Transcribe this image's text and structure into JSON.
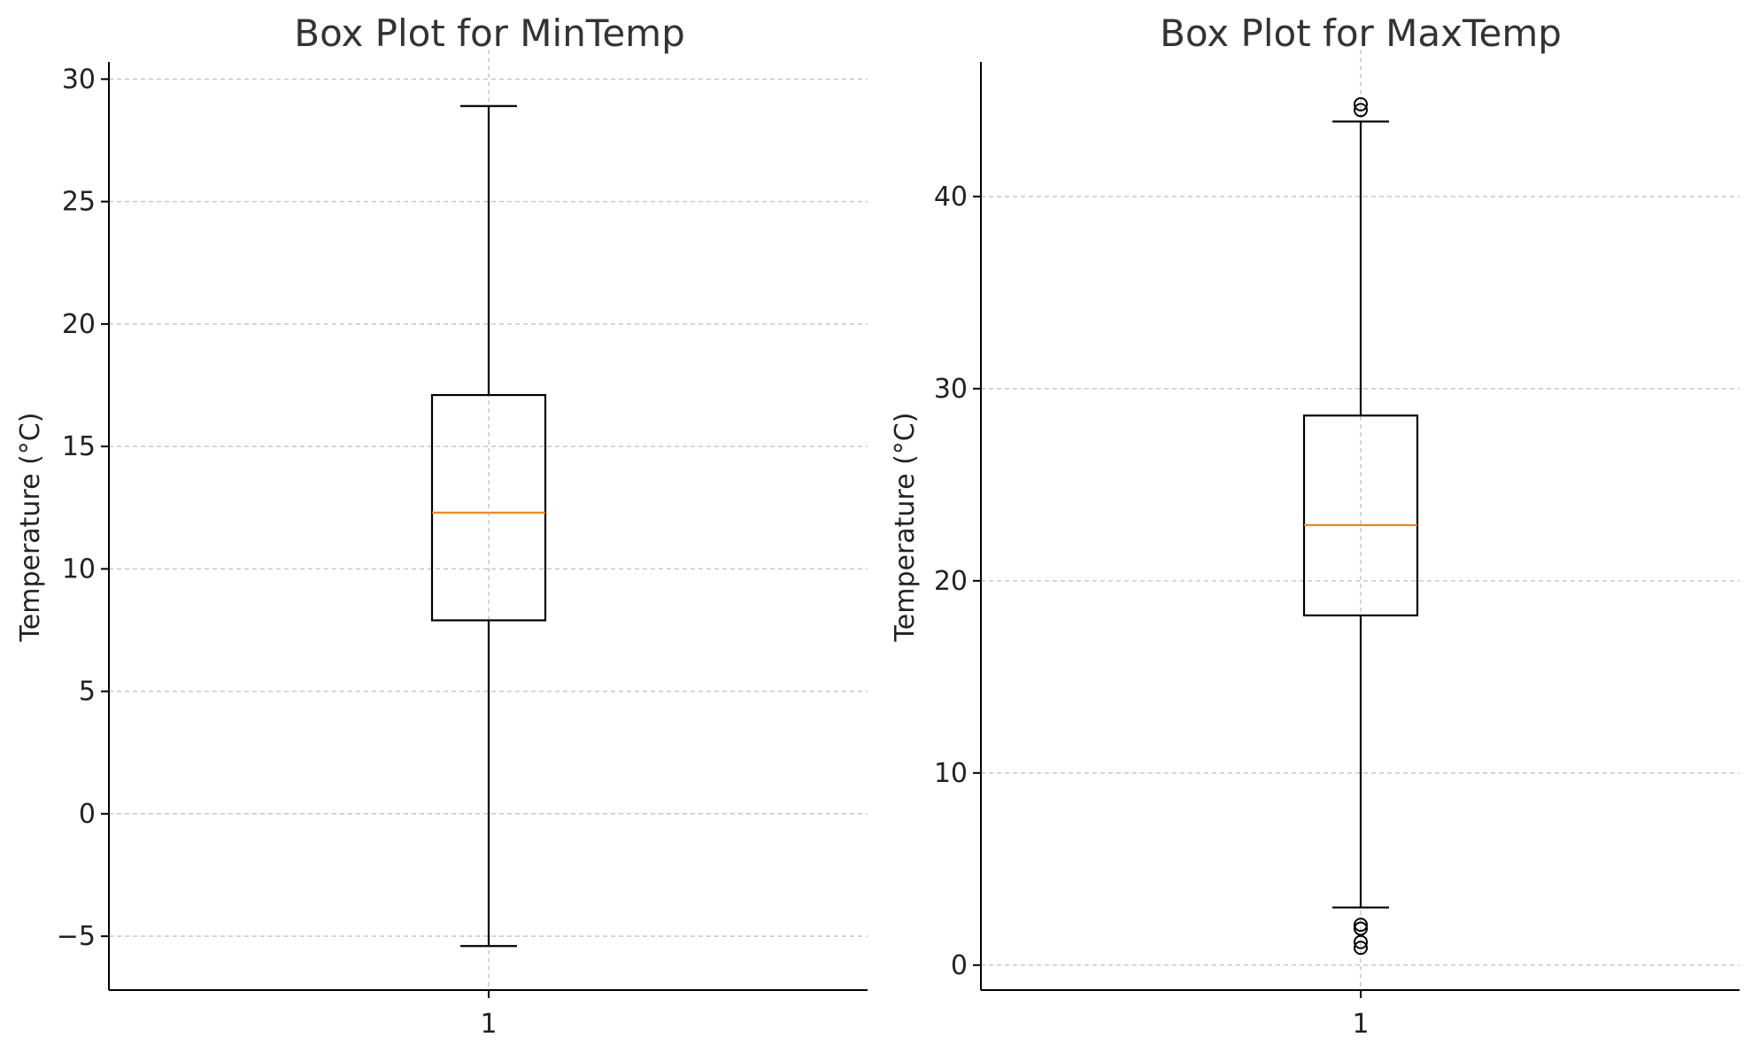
{
  "chart_data": [
    {
      "type": "boxplot",
      "title": "Box Plot for MinTemp",
      "ylabel": "Temperature (°C)",
      "xlabel": "",
      "categories": [
        "1"
      ],
      "ylim": [
        -7.2,
        30.7
      ],
      "yticks": [
        -5,
        0,
        5,
        10,
        15,
        20,
        25,
        30
      ],
      "ytick_labels": [
        "−5",
        "0",
        "5",
        "10",
        "15",
        "20",
        "25",
        "30"
      ],
      "grid": true,
      "box": {
        "whisker_low": -5.4,
        "q1": 7.9,
        "median": 12.3,
        "q3": 17.1,
        "whisker_high": 28.9
      },
      "outliers": [],
      "colors": {
        "box": "#000000",
        "median": "#ff7f0e",
        "grid": "#c8c8c8"
      }
    },
    {
      "type": "boxplot",
      "title": "Box Plot for MaxTemp",
      "ylabel": "Temperature (°C)",
      "xlabel": "",
      "categories": [
        "1"
      ],
      "ylim": [
        -1.3,
        47.0
      ],
      "yticks": [
        0,
        10,
        20,
        30,
        40
      ],
      "ytick_labels": [
        "0",
        "10",
        "20",
        "30",
        "40"
      ],
      "grid": true,
      "box": {
        "whisker_low": 3.0,
        "q1": 18.2,
        "median": 22.9,
        "q3": 28.6,
        "whisker_high": 43.9
      },
      "outliers": [
        0.9,
        1.2,
        1.9,
        2.1,
        44.5,
        44.8
      ],
      "colors": {
        "box": "#000000",
        "median": "#ff7f0e",
        "grid": "#c8c8c8"
      }
    }
  ]
}
